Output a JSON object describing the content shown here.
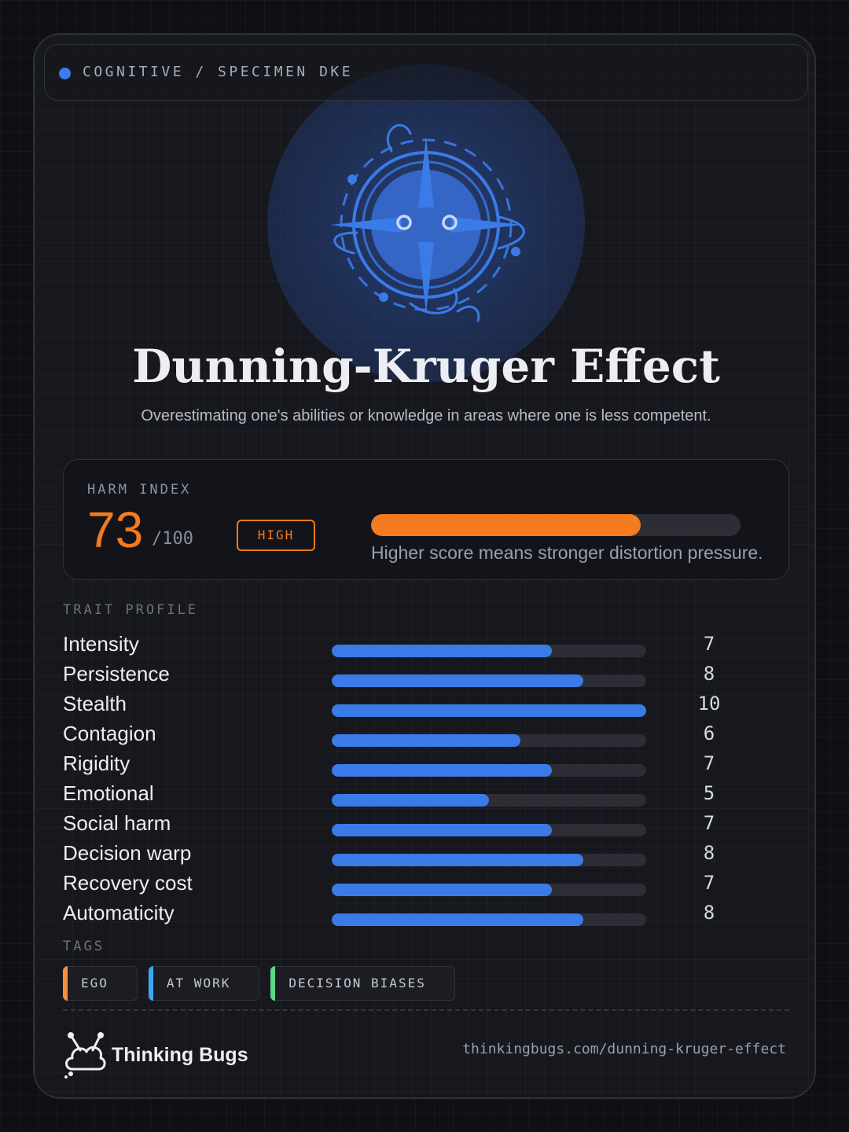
{
  "header": {
    "breadcrumb": "COGNITIVE / SPECIMEN DKE",
    "accent_color": "#3c7bf0"
  },
  "mascot": {
    "icon": "compass-bug-icon"
  },
  "title": "Dunning-Kruger Effect",
  "subtitle": "Overestimating one's abilities or knowledge in areas where one is less competent.",
  "harm": {
    "label": "HARM INDEX",
    "score": "73",
    "out_of": "/100",
    "level": "HIGH",
    "fraction": 0.73,
    "note": "Higher score means stronger distortion pressure.",
    "color": "#f47b20"
  },
  "traits": {
    "label": "TRAIT PROFILE",
    "max": 10,
    "items": [
      {
        "name": "Intensity",
        "value": "7"
      },
      {
        "name": "Persistence",
        "value": "8"
      },
      {
        "name": "Stealth",
        "value": "10"
      },
      {
        "name": "Contagion",
        "value": "6"
      },
      {
        "name": "Rigidity",
        "value": "7"
      },
      {
        "name": "Emotional",
        "value": "5"
      },
      {
        "name": "Social harm",
        "value": "7"
      },
      {
        "name": "Decision warp",
        "value": "8"
      },
      {
        "name": "Recovery cost",
        "value": "7"
      },
      {
        "name": "Automaticity",
        "value": "8"
      }
    ]
  },
  "tags": {
    "label": "TAGS",
    "items": [
      {
        "text": "EGO",
        "color": "#f4923a"
      },
      {
        "text": "AT WORK",
        "color": "#3aa8f0"
      },
      {
        "text": "DECISION BIASES",
        "color": "#5ad883"
      }
    ]
  },
  "footer": {
    "brand": "Thinking Bugs",
    "logo_icon": "cloud-bug-icon",
    "url": "thinkingbugs.com/dunning-kruger-effect"
  }
}
